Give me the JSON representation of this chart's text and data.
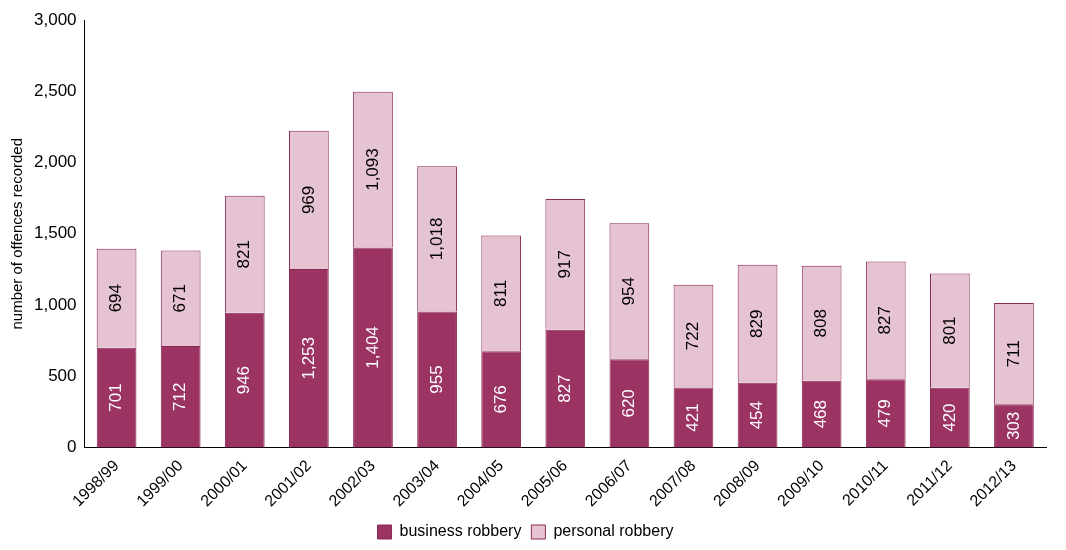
{
  "chart_data": {
    "type": "bar",
    "stacked": true,
    "ylabel": "number of offences recorded",
    "categories": [
      "1998/99",
      "1999/00",
      "2000/01",
      "2001/02",
      "2002/03",
      "2003/04",
      "2004/05",
      "2005/06",
      "2006/07",
      "2007/08",
      "2008/09",
      "2009/10",
      "2010/11",
      "2011/12",
      "2012/13"
    ],
    "series": [
      {
        "name": "business robbery",
        "color": "#9b3363",
        "values": [
          701,
          712,
          946,
          1253,
          1404,
          955,
          676,
          827,
          620,
          421,
          454,
          468,
          479,
          420,
          303
        ],
        "value_labels": [
          "701",
          "712",
          "946",
          "1,253",
          "1,404",
          "955",
          "676",
          "827",
          "620",
          "421",
          "454",
          "468",
          "479",
          "420",
          "303"
        ]
      },
      {
        "name": "personal robbery",
        "color": "#e6c3d3",
        "values": [
          694,
          671,
          821,
          969,
          1093,
          1018,
          811,
          917,
          954,
          722,
          829,
          808,
          827,
          801,
          711
        ],
        "value_labels": [
          "694",
          "671",
          "821",
          "969",
          "1,093",
          "1,018",
          "811",
          "917",
          "954",
          "722",
          "829",
          "808",
          "827",
          "801",
          "711"
        ]
      }
    ],
    "ylim": [
      0,
      3000
    ],
    "yticks": [
      0,
      500,
      {
        "value": 1000,
        "label": "1,000"
      },
      {
        "value": 1500,
        "label": "1,500"
      },
      {
        "value": 2000,
        "label": "2,000"
      },
      {
        "value": 2500,
        "label": "2,500"
      },
      {
        "value": 3000,
        "label": "3,000"
      }
    ],
    "grid": false,
    "legend": "bottom"
  }
}
